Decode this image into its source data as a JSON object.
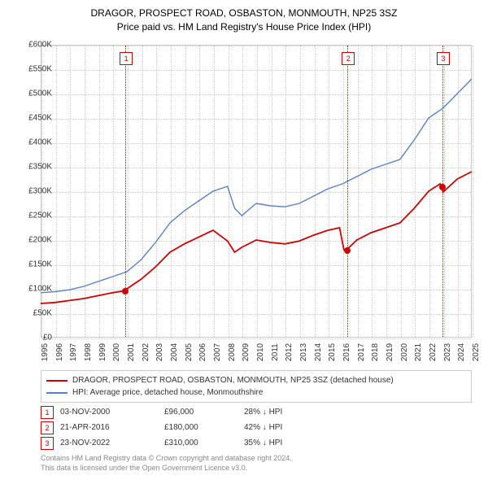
{
  "title_line1": "DRAGOR, PROSPECT ROAD, OSBASTON, MONMOUTH, NP25 3SZ",
  "title_line2": "Price paid vs. HM Land Registry's House Price Index (HPI)",
  "chart": {
    "type": "line",
    "background_color": "#ffffff",
    "grid_color": "#cccccc",
    "x_min": 1995,
    "x_max": 2025,
    "y_min": 0,
    "y_max": 600000,
    "y_ticks": [
      0,
      50000,
      100000,
      150000,
      200000,
      250000,
      300000,
      350000,
      400000,
      450000,
      500000,
      550000,
      600000
    ],
    "y_tick_labels": [
      "£0",
      "£50K",
      "£100K",
      "£150K",
      "£200K",
      "£250K",
      "£300K",
      "£350K",
      "£400K",
      "£450K",
      "£500K",
      "£550K",
      "£600K"
    ],
    "x_ticks": [
      1995,
      1996,
      1997,
      1998,
      1999,
      2000,
      2001,
      2002,
      2003,
      2004,
      2005,
      2006,
      2007,
      2008,
      2009,
      2010,
      2011,
      2012,
      2013,
      2014,
      2015,
      2016,
      2017,
      2018,
      2019,
      2020,
      2021,
      2022,
      2023,
      2024,
      2025
    ],
    "series": [
      {
        "name": "property",
        "color": "#cc0000",
        "width": 1.8,
        "data": [
          [
            1995,
            70000
          ],
          [
            1996,
            72000
          ],
          [
            1997,
            76000
          ],
          [
            1998,
            80000
          ],
          [
            1999,
            86000
          ],
          [
            2000,
            92000
          ],
          [
            2000.84,
            96000
          ],
          [
            2001,
            100000
          ],
          [
            2002,
            120000
          ],
          [
            2003,
            145000
          ],
          [
            2004,
            175000
          ],
          [
            2005,
            192000
          ],
          [
            2006,
            206000
          ],
          [
            2007,
            220000
          ],
          [
            2008,
            198000
          ],
          [
            2008.5,
            175000
          ],
          [
            2009,
            185000
          ],
          [
            2010,
            200000
          ],
          [
            2011,
            195000
          ],
          [
            2012,
            192000
          ],
          [
            2013,
            198000
          ],
          [
            2014,
            210000
          ],
          [
            2015,
            220000
          ],
          [
            2015.8,
            225000
          ],
          [
            2016.1,
            180000
          ],
          [
            2016.3,
            180000
          ],
          [
            2017,
            200000
          ],
          [
            2018,
            215000
          ],
          [
            2019,
            225000
          ],
          [
            2020,
            235000
          ],
          [
            2021,
            265000
          ],
          [
            2022,
            300000
          ],
          [
            2022.8,
            315000
          ],
          [
            2022.9,
            310000
          ],
          [
            2023,
            298000
          ],
          [
            2024,
            325000
          ],
          [
            2025,
            340000
          ]
        ]
      },
      {
        "name": "hpi",
        "color": "#5b7fc7",
        "width": 1.4,
        "data": [
          [
            1995,
            92000
          ],
          [
            1996,
            94000
          ],
          [
            1997,
            98000
          ],
          [
            1998,
            105000
          ],
          [
            1999,
            115000
          ],
          [
            2000,
            125000
          ],
          [
            2001,
            135000
          ],
          [
            2002,
            160000
          ],
          [
            2003,
            195000
          ],
          [
            2004,
            235000
          ],
          [
            2005,
            260000
          ],
          [
            2006,
            280000
          ],
          [
            2007,
            300000
          ],
          [
            2008,
            310000
          ],
          [
            2008.5,
            265000
          ],
          [
            2009,
            250000
          ],
          [
            2010,
            275000
          ],
          [
            2011,
            270000
          ],
          [
            2012,
            268000
          ],
          [
            2013,
            275000
          ],
          [
            2014,
            290000
          ],
          [
            2015,
            305000
          ],
          [
            2016,
            315000
          ],
          [
            2017,
            330000
          ],
          [
            2018,
            345000
          ],
          [
            2019,
            355000
          ],
          [
            2020,
            365000
          ],
          [
            2021,
            405000
          ],
          [
            2022,
            450000
          ],
          [
            2023,
            470000
          ],
          [
            2024,
            500000
          ],
          [
            2025,
            530000
          ]
        ]
      }
    ],
    "markers": [
      {
        "n": "1",
        "year": 2000.84,
        "price": 96000
      },
      {
        "n": "2",
        "year": 2016.3,
        "price": 180000
      },
      {
        "n": "3",
        "year": 2022.9,
        "price": 310000
      }
    ]
  },
  "legend": [
    {
      "color": "#cc0000",
      "label": "DRAGOR, PROSPECT ROAD, OSBASTON, MONMOUTH, NP25 3SZ (detached house)"
    },
    {
      "color": "#5b7fc7",
      "label": "HPI: Average price, detached house, Monmouthshire"
    }
  ],
  "transactions": [
    {
      "n": "1",
      "date": "03-NOV-2000",
      "price": "£96,000",
      "pct": "28% ↓ HPI"
    },
    {
      "n": "2",
      "date": "21-APR-2016",
      "price": "£180,000",
      "pct": "42% ↓ HPI"
    },
    {
      "n": "3",
      "date": "23-NOV-2022",
      "price": "£310,000",
      "pct": "35% ↓ HPI"
    }
  ],
  "footnote_line1": "Contains HM Land Registry data © Crown copyright and database right 2024.",
  "footnote_line2": "This data is licensed under the Open Government Licence v3.0."
}
